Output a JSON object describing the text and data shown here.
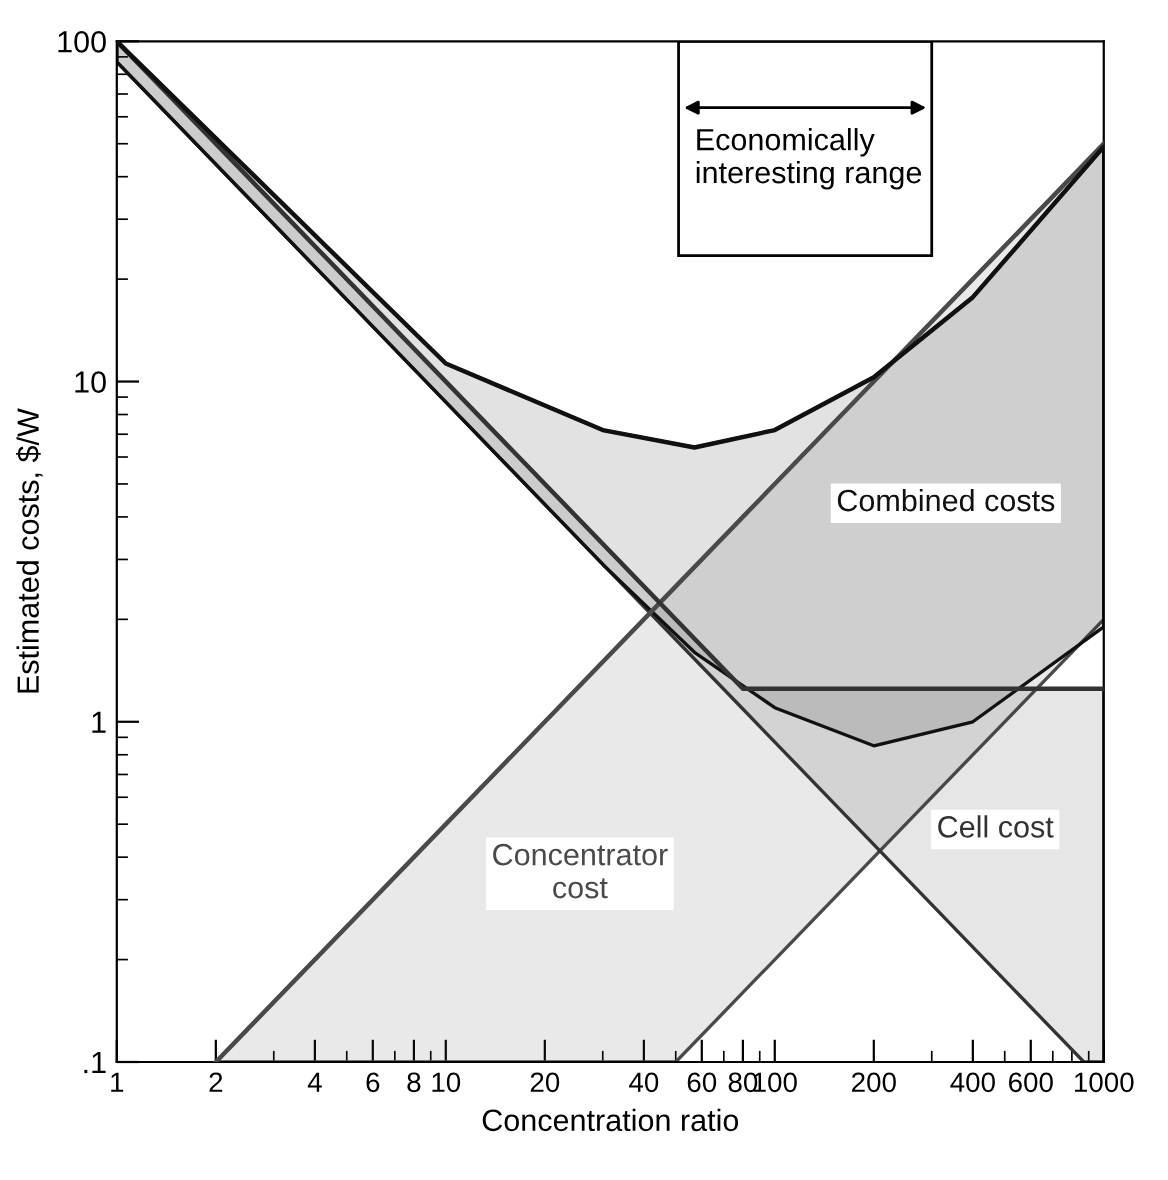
{
  "chart_data": {
    "type": "line",
    "xlabel": "Concentration ratio",
    "ylabel": "Estimated costs, $/W",
    "log": "xy",
    "xlim": [
      1,
      1000
    ],
    "ylim": [
      0.1,
      100
    ],
    "xticks": [
      1,
      2,
      4,
      6,
      8,
      10,
      20,
      40,
      60,
      80,
      100,
      200,
      400,
      600,
      1000
    ],
    "yticks": [
      {
        "value": 0.1,
        "label": ".1"
      },
      1,
      10,
      100
    ],
    "grid": false,
    "legend": false,
    "marker": "none",
    "line_style": "solid",
    "series": [
      {
        "name": "Concentrator cost",
        "color": "#4a4a4a",
        "x": [
          2,
          50,
          1000
        ],
        "values": [
          0.1,
          2.5,
          50
        ],
        "upper": [
          0.1,
          2.5,
          50
        ],
        "lower": [
          0.1,
          0.1,
          2.0
        ]
      },
      {
        "name": "Cell cost",
        "color": "#333333",
        "x": [
          1,
          80,
          870,
          1000
        ],
        "values": [
          100,
          1.25,
          1.25,
          1.25
        ],
        "upper": [
          100,
          1.25,
          1.25,
          1.25
        ],
        "lower": [
          87,
          1.09,
          0.1,
          0.1
        ]
      },
      {
        "name": "Combined costs",
        "color": "#111111",
        "x": [
          1,
          10,
          30,
          57,
          100,
          200,
          400,
          1000
        ],
        "values": [
          100,
          11.3,
          7.2,
          6.4,
          7.2,
          10.3,
          17.7,
          49
        ],
        "upper": [
          100,
          11.3,
          7.2,
          6.4,
          7.2,
          10.3,
          17.7,
          49
        ],
        "lower": [
          87,
          8.7,
          2.9,
          1.6,
          1.1,
          0.85,
          1.0,
          1.9
        ]
      }
    ],
    "bands": [
      {
        "axis": "x",
        "from": 51,
        "to": 300,
        "label": "Economically interesting range",
        "color": "#ffffff"
      }
    ]
  }
}
